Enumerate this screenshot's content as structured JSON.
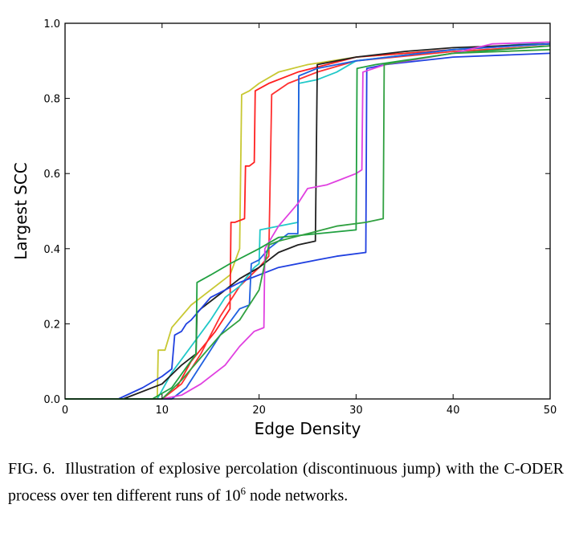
{
  "chart_data": {
    "type": "line",
    "xlabel": "Edge Density",
    "ylabel": "Largest SCC",
    "xlim": [
      0,
      50
    ],
    "ylim": [
      0.0,
      1.0
    ],
    "xticks": [
      0,
      10,
      20,
      30,
      40,
      50
    ],
    "xtick_labels": [
      "0",
      "10",
      "20",
      "30",
      "40",
      "50"
    ],
    "yticks": [
      0.0,
      0.2,
      0.4,
      0.6,
      0.8,
      1.0
    ],
    "ytick_labels": [
      "0.0",
      "0.2",
      "0.4",
      "0.6",
      "0.8",
      "1.0"
    ],
    "grid": false,
    "legend": false,
    "series": [
      {
        "color": "#c8c832",
        "points": [
          [
            0,
            0
          ],
          [
            9.5,
            0
          ],
          [
            9.6,
            0.13
          ],
          [
            10.3,
            0.13
          ],
          [
            11,
            0.19
          ],
          [
            13,
            0.25
          ],
          [
            17,
            0.33
          ],
          [
            18,
            0.4
          ],
          [
            18.2,
            0.81
          ],
          [
            19,
            0.82
          ],
          [
            20,
            0.84
          ],
          [
            22,
            0.87
          ],
          [
            25,
            0.89
          ],
          [
            30,
            0.91
          ],
          [
            40,
            0.93
          ],
          [
            50,
            0.945
          ]
        ]
      },
      {
        "color": "#ff2020",
        "points": [
          [
            0,
            0
          ],
          [
            10,
            0
          ],
          [
            11.5,
            0.03
          ],
          [
            13,
            0.1
          ],
          [
            15.5,
            0.18
          ],
          [
            17,
            0.24
          ],
          [
            17.1,
            0.47
          ],
          [
            17.5,
            0.47
          ],
          [
            18.5,
            0.48
          ],
          [
            18.6,
            0.62
          ],
          [
            19,
            0.62
          ],
          [
            19.5,
            0.63
          ],
          [
            19.6,
            0.82
          ],
          [
            21,
            0.84
          ],
          [
            24,
            0.87
          ],
          [
            30,
            0.91
          ],
          [
            40,
            0.93
          ],
          [
            50,
            0.945
          ]
        ]
      },
      {
        "color": "#ff3030",
        "points": [
          [
            0,
            0
          ],
          [
            10,
            0
          ],
          [
            12,
            0.04
          ],
          [
            14,
            0.12
          ],
          [
            16,
            0.22
          ],
          [
            18,
            0.3
          ],
          [
            20,
            0.35
          ],
          [
            21,
            0.38
          ],
          [
            21.3,
            0.81
          ],
          [
            23,
            0.84
          ],
          [
            26,
            0.87
          ],
          [
            30,
            0.9
          ],
          [
            40,
            0.925
          ],
          [
            50,
            0.94
          ]
        ]
      },
      {
        "color": "#20c8c8",
        "points": [
          [
            0,
            0
          ],
          [
            9.5,
            0
          ],
          [
            11,
            0.07
          ],
          [
            13,
            0.14
          ],
          [
            15,
            0.21
          ],
          [
            16.5,
            0.27
          ],
          [
            18,
            0.3
          ],
          [
            19.5,
            0.35
          ],
          [
            20,
            0.36
          ],
          [
            20.1,
            0.45
          ],
          [
            22,
            0.46
          ],
          [
            24,
            0.47
          ],
          [
            24.1,
            0.84
          ],
          [
            26,
            0.85
          ],
          [
            28,
            0.87
          ],
          [
            30,
            0.9
          ],
          [
            40,
            0.93
          ],
          [
            50,
            0.95
          ]
        ]
      },
      {
        "color": "#202020",
        "points": [
          [
            0,
            0
          ],
          [
            6,
            0
          ],
          [
            10,
            0.04
          ],
          [
            12,
            0.09
          ],
          [
            13.5,
            0.12
          ],
          [
            13.6,
            0.23
          ],
          [
            14,
            0.24
          ],
          [
            16,
            0.28
          ],
          [
            18,
            0.32
          ],
          [
            20,
            0.35
          ],
          [
            22,
            0.39
          ],
          [
            24,
            0.41
          ],
          [
            25.8,
            0.42
          ],
          [
            26,
            0.89
          ],
          [
            28,
            0.9
          ],
          [
            30,
            0.91
          ],
          [
            35,
            0.925
          ],
          [
            40,
            0.935
          ],
          [
            45,
            0.94
          ],
          [
            50,
            0.945
          ]
        ]
      },
      {
        "color": "#2040e0",
        "points": [
          [
            0,
            0
          ],
          [
            5.5,
            0
          ],
          [
            8,
            0.03
          ],
          [
            10,
            0.06
          ],
          [
            11,
            0.08
          ],
          [
            11.3,
            0.17
          ],
          [
            12,
            0.18
          ],
          [
            12.5,
            0.2
          ],
          [
            13,
            0.21
          ],
          [
            15,
            0.27
          ],
          [
            18,
            0.31
          ],
          [
            22,
            0.35
          ],
          [
            26,
            0.37
          ],
          [
            28,
            0.38
          ],
          [
            31,
            0.39
          ],
          [
            31.1,
            0.88
          ],
          [
            33,
            0.89
          ],
          [
            40,
            0.91
          ],
          [
            50,
            0.92
          ]
        ]
      },
      {
        "color": "#2060e0",
        "points": [
          [
            0,
            0
          ],
          [
            11,
            0
          ],
          [
            12.5,
            0.03
          ],
          [
            14,
            0.09
          ],
          [
            16,
            0.17
          ],
          [
            18,
            0.24
          ],
          [
            19,
            0.25
          ],
          [
            19.2,
            0.36
          ],
          [
            20,
            0.37
          ],
          [
            21,
            0.4
          ],
          [
            23,
            0.44
          ],
          [
            24,
            0.44
          ],
          [
            24.1,
            0.86
          ],
          [
            26,
            0.88
          ],
          [
            30,
            0.9
          ],
          [
            40,
            0.93
          ],
          [
            50,
            0.945
          ]
        ]
      },
      {
        "color": "#e040e0",
        "points": [
          [
            0,
            0
          ],
          [
            10,
            0
          ],
          [
            12,
            0.01
          ],
          [
            14,
            0.04
          ],
          [
            16.5,
            0.09
          ],
          [
            18,
            0.14
          ],
          [
            19.5,
            0.18
          ],
          [
            20.5,
            0.19
          ],
          [
            20.6,
            0.4
          ],
          [
            22,
            0.46
          ],
          [
            24,
            0.52
          ],
          [
            25,
            0.56
          ],
          [
            27,
            0.57
          ],
          [
            28,
            0.58
          ],
          [
            30,
            0.6
          ],
          [
            30.6,
            0.61
          ],
          [
            30.7,
            0.87
          ],
          [
            33,
            0.89
          ],
          [
            40,
            0.92
          ],
          [
            44,
            0.945
          ],
          [
            50,
            0.95
          ]
        ]
      },
      {
        "color": "#20a040",
        "points": [
          [
            0,
            0
          ],
          [
            9,
            0
          ],
          [
            11,
            0.03
          ],
          [
            13.5,
            0.12
          ],
          [
            13.6,
            0.31
          ],
          [
            15,
            0.33
          ],
          [
            17,
            0.36
          ],
          [
            20,
            0.4
          ],
          [
            22,
            0.43
          ],
          [
            26,
            0.44
          ],
          [
            30,
            0.45
          ],
          [
            30.1,
            0.88
          ],
          [
            32,
            0.89
          ],
          [
            40,
            0.92
          ],
          [
            50,
            0.94
          ]
        ]
      },
      {
        "color": "#30a040",
        "points": [
          [
            0,
            0
          ],
          [
            10,
            0
          ],
          [
            12,
            0.05
          ],
          [
            14,
            0.11
          ],
          [
            16,
            0.17
          ],
          [
            18,
            0.21
          ],
          [
            20,
            0.29
          ],
          [
            21,
            0.41
          ],
          [
            22,
            0.42
          ],
          [
            25,
            0.44
          ],
          [
            28,
            0.46
          ],
          [
            31,
            0.47
          ],
          [
            32.8,
            0.48
          ],
          [
            32.9,
            0.89
          ],
          [
            35,
            0.9
          ],
          [
            40,
            0.92
          ],
          [
            50,
            0.93
          ]
        ]
      }
    ]
  },
  "caption": {
    "fig_label": "FIG. 6.",
    "text_before_sup": "Illustration of explosive percolation (discontinuous jump) with the C-ODER process over ten different runs of 10",
    "superscript": "6",
    "text_after_sup": " node networks."
  }
}
